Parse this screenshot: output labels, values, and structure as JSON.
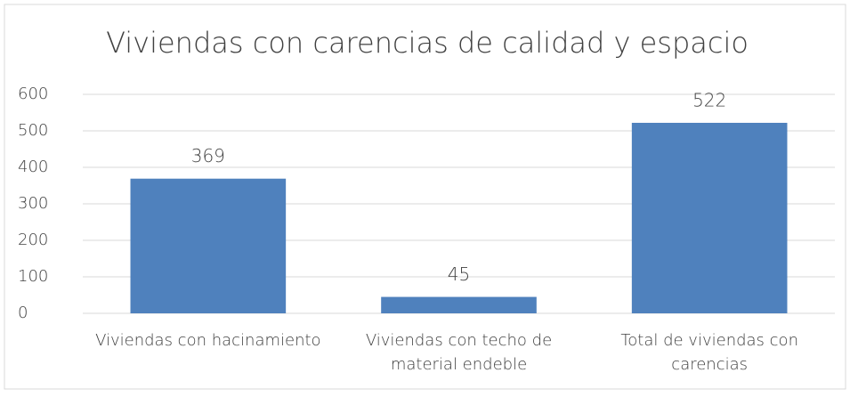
{
  "chart_data": {
    "type": "bar",
    "title": "Viviendas con carencias de calidad y espacio",
    "categories": [
      [
        "Viviendas con hacinamiento"
      ],
      [
        "Viviendas con techo de",
        "material endeble"
      ],
      [
        "Total de viviendas con",
        "carencias"
      ]
    ],
    "values": [
      369,
      45,
      522
    ],
    "color": "#4f81bd",
    "ylim": [
      0,
      600
    ],
    "yticks": [
      0,
      100,
      200,
      300,
      400,
      500,
      600
    ],
    "grid": true
  }
}
